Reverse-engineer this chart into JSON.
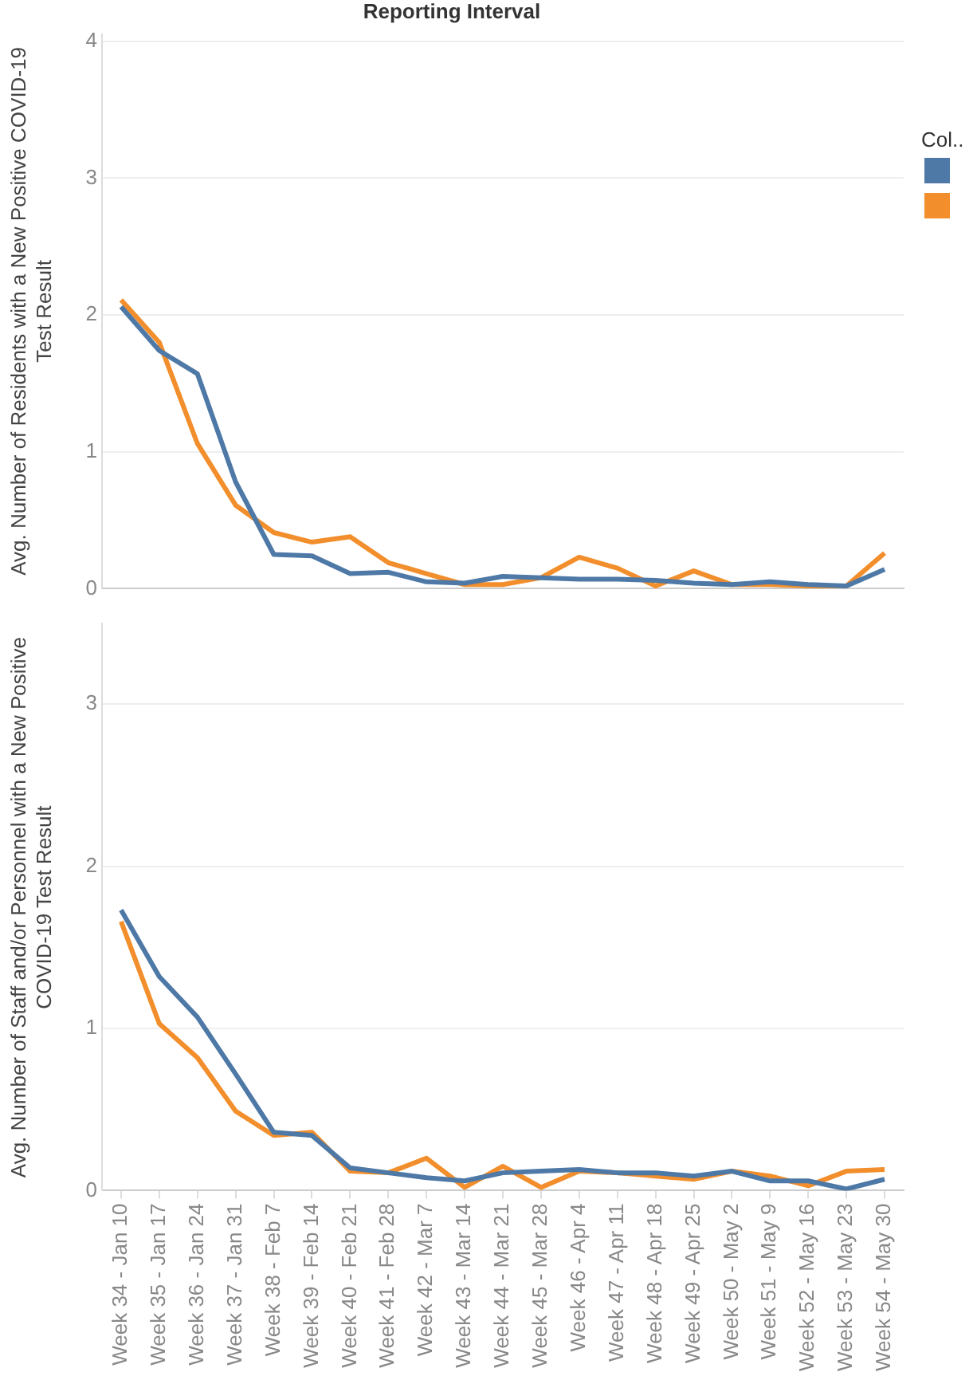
{
  "chart_data": [
    {
      "type": "line",
      "title": "Reporting Interval",
      "ylabel": "Avg. Number of Residents with a New Positive COVID-19 Test Result",
      "legend_title": "Col..",
      "grid": "y",
      "marker": "none",
      "line_style": "solid",
      "tick_labels": "y",
      "categories": [
        null,
        null,
        null,
        null,
        null,
        null,
        null,
        null,
        null,
        null,
        null,
        null,
        null,
        null,
        null,
        null,
        null,
        null,
        null,
        null,
        null
      ],
      "ylim": [
        0,
        4.05
      ],
      "yticks": [
        0,
        1,
        2,
        3,
        4
      ],
      "series": [
        {
          "color": "#4e79a7",
          "values": [
            2.06,
            1.74,
            1.57,
            0.78,
            0.25,
            0.24,
            0.11,
            0.12,
            0.05,
            0.04,
            0.09,
            0.08,
            0.07,
            0.07,
            0.06,
            0.04,
            0.03,
            0.05,
            0.03,
            0.02,
            0.14
          ]
        },
        {
          "color": "#f28e2b",
          "values": [
            2.11,
            1.8,
            1.06,
            0.61,
            0.41,
            0.34,
            0.38,
            0.19,
            0.11,
            0.03,
            0.03,
            0.08,
            0.23,
            0.15,
            0.02,
            0.13,
            0.03,
            0.03,
            0.02,
            0.02,
            0.26
          ]
        }
      ]
    },
    {
      "type": "line",
      "ylabel": "Avg. Number of Staff and/or Personnel with a New Positive COVID-19 Test Result",
      "grid": "y",
      "marker": "none",
      "line_style": "solid",
      "categories": [
        "Week 34 - Jan 10",
        "Week 35 - Jan 17",
        "Week 36 - Jan 24",
        "Week 37 - Jan 31",
        "Week 38 - Feb 7",
        "Week 39 - Feb 14",
        "Week 40 - Feb 21",
        "Week 41 - Feb 28",
        "Week 42 - Mar 7",
        "Week 43 - Mar 14",
        "Week 44 - Mar 21",
        "Week 45 - Mar 28",
        "Week 46 - Apr 4",
        "Week 47 - Apr 11",
        "Week 48 - Apr 18",
        "Week 49 - Apr 25",
        "Week 50 - May 2",
        "Week 51 - May 9",
        "Week 52 - May 16",
        "Week 53 - May 23",
        "Week 54 - May 30"
      ],
      "ylim": [
        0,
        3.5
      ],
      "yticks": [
        0,
        1,
        2,
        3
      ],
      "series": [
        {
          "color": "#4e79a7",
          "values": [
            1.73,
            1.32,
            1.07,
            0.72,
            0.36,
            0.34,
            0.14,
            0.11,
            0.08,
            0.06,
            0.11,
            0.12,
            0.13,
            0.11,
            0.11,
            0.09,
            0.12,
            0.06,
            0.06,
            0.01,
            0.07
          ]
        },
        {
          "color": "#f28e2b",
          "values": [
            1.66,
            1.03,
            0.82,
            0.49,
            0.34,
            0.36,
            0.12,
            0.11,
            0.2,
            0.02,
            0.15,
            0.02,
            0.12,
            0.11,
            0.09,
            0.07,
            0.12,
            0.09,
            0.03,
            0.12,
            0.13
          ]
        }
      ]
    }
  ]
}
